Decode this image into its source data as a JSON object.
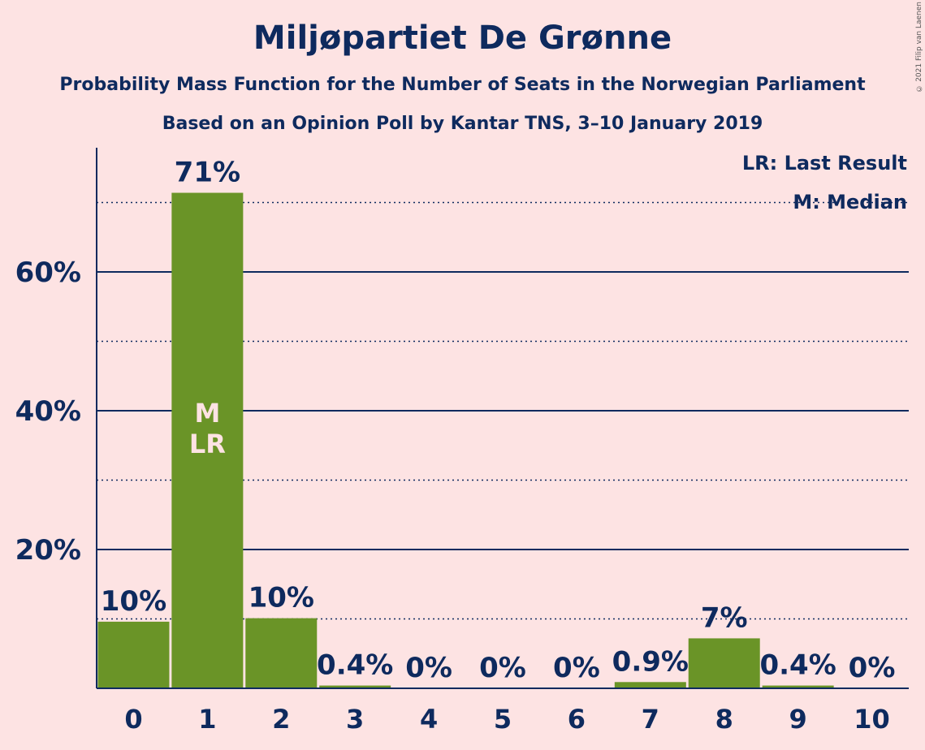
{
  "header": {
    "title": "Miljøpartiet De Grønne",
    "subtitle1": "Probability Mass Function for the Number of Seats in the Norwegian Parliament",
    "subtitle2": "Based on an Opinion Poll by Kantar TNS, 3–10 January 2019",
    "copyright": "© 2021 Filip van Laenen"
  },
  "legend": {
    "last_result": "LR: Last Result",
    "median": "M: Median"
  },
  "colors": {
    "background": "#FDE3E3",
    "bar": "#6A9427",
    "text": "#0E2A5E",
    "bar_marker_text": "#FDE3E3"
  },
  "chart_data": {
    "type": "bar",
    "categories": [
      "0",
      "1",
      "2",
      "3",
      "4",
      "5",
      "6",
      "7",
      "8",
      "9",
      "10"
    ],
    "values": [
      9.6,
      71.4,
      10.1,
      0.4,
      0,
      0,
      0,
      0.9,
      7.2,
      0.4,
      0
    ],
    "value_labels": [
      "10%",
      "71%",
      "10%",
      "0.4%",
      "0%",
      "0%",
      "0%",
      "0.9%",
      "7%",
      "0.4%",
      "0%"
    ],
    "ylim": [
      0,
      78
    ],
    "yticks": [
      20,
      40,
      60
    ],
    "ytick_labels": [
      "20%",
      "40%",
      "60%"
    ],
    "minor_gridlines": [
      10,
      30,
      50,
      70
    ],
    "bar_markers": [
      {
        "index": 1,
        "lines": [
          "M",
          "LR"
        ]
      }
    ],
    "legend_position": "top-right"
  }
}
